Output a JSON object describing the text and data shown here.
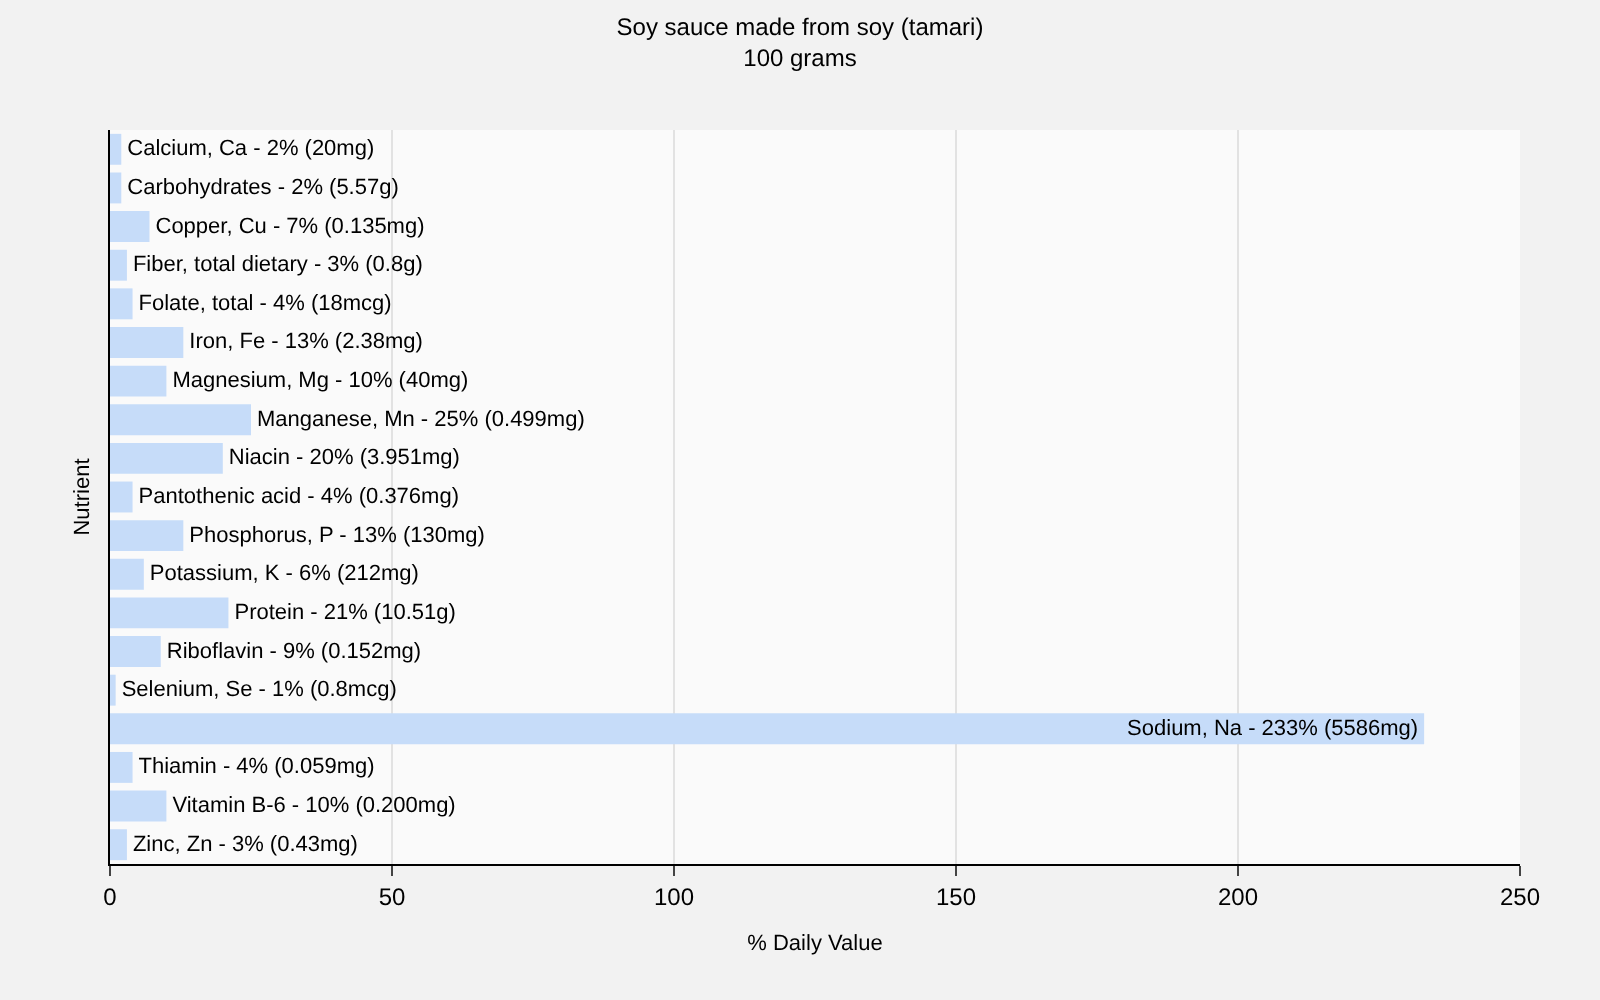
{
  "chart_data": {
    "type": "bar",
    "orientation": "horizontal",
    "title": "Soy sauce made from soy (tamari)",
    "subtitle": "100 grams",
    "xlabel": "% Daily Value",
    "ylabel": "Nutrient",
    "categories": [
      "Calcium, Ca - 2% (20mg)",
      "Carbohydrates - 2% (5.57g)",
      "Copper, Cu - 7% (0.135mg)",
      "Fiber, total dietary - 3% (0.8g)",
      "Folate, total - 4% (18mcg)",
      "Iron, Fe - 13% (2.38mg)",
      "Magnesium, Mg - 10% (40mg)",
      "Manganese, Mn - 25% (0.499mg)",
      "Niacin - 20% (3.951mg)",
      "Pantothenic acid - 4% (0.376mg)",
      "Phosphorus, P - 13% (130mg)",
      "Potassium, K - 6% (212mg)",
      "Protein - 21% (10.51g)",
      "Riboflavin - 9% (0.152mg)",
      "Selenium, Se - 1% (0.8mcg)",
      "Sodium, Na - 233% (5586mg)",
      "Thiamin - 4% (0.059mg)",
      "Vitamin B-6 - 10% (0.200mg)",
      "Zinc, Zn - 3% (0.43mg)"
    ],
    "values": [
      2,
      2,
      7,
      3,
      4,
      13,
      10,
      25,
      20,
      4,
      13,
      6,
      21,
      9,
      1,
      233,
      4,
      10,
      3
    ],
    "color": "#c6dcf9",
    "xlim": [
      0,
      250
    ],
    "xticks": [
      0,
      50,
      100,
      150,
      200,
      250
    ],
    "grid": "x"
  }
}
